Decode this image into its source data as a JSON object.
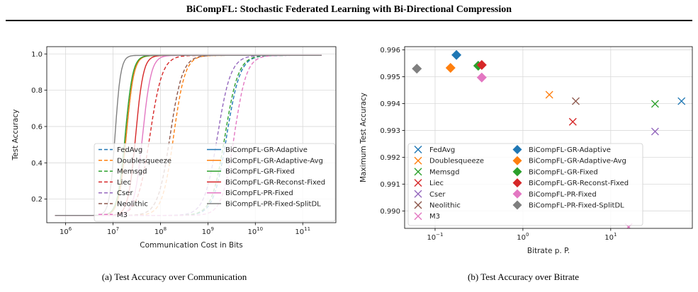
{
  "header": {
    "title": "BiCompFL: Stochastic Federated Learning with Bi-Directional Compression"
  },
  "captions": {
    "a": "(a) Test Accuracy over Communication",
    "b": "(b) Test Accuracy over Bitrate"
  },
  "chart_data": [
    {
      "id": "a",
      "type": "line",
      "xlabel": "Communication Cost in Bits",
      "ylabel": "Test Accuracy",
      "xscale": "log",
      "xlim": [
        400000,
        500000000000
      ],
      "ylim": [
        0.07,
        1.04
      ],
      "xticks": [
        {
          "v": 1000000,
          "label": "10^6"
        },
        {
          "v": 10000000,
          "label": "10^7"
        },
        {
          "v": 100000000,
          "label": "10^8"
        },
        {
          "v": 1000000000,
          "label": "10^9"
        },
        {
          "v": 10000000000,
          "label": "10^10"
        },
        {
          "v": 100000000000,
          "label": "10^11"
        }
      ],
      "yticks": [
        {
          "v": 0.2,
          "label": "0.2"
        },
        {
          "v": 0.4,
          "label": "0.4"
        },
        {
          "v": 0.6,
          "label": "0.6"
        },
        {
          "v": 0.8,
          "label": "0.8"
        },
        {
          "v": 1.0,
          "label": "1.0"
        }
      ],
      "grid": true,
      "legend": {
        "position": "lower-right",
        "columns": 2
      },
      "series": [
        {
          "name": "FedAvg",
          "color": "#1f77b4",
          "dash": true,
          "x0": 600000,
          "mid": 2500000000,
          "width": 0.14,
          "end": 250000000000
        },
        {
          "name": "Doublesqueeze",
          "color": "#ff7f0e",
          "dash": true,
          "x0": 600000,
          "mid": 190000000,
          "width": 0.12,
          "end": 250000000000
        },
        {
          "name": "Memsgd",
          "color": "#2ca02c",
          "dash": true,
          "x0": 600000,
          "mid": 2300000000,
          "width": 0.14,
          "end": 250000000000
        },
        {
          "name": "Liec",
          "color": "#d62728",
          "dash": true,
          "x0": 600000,
          "mid": 60000000,
          "width": 0.13,
          "end": 250000000000
        },
        {
          "name": "Cser",
          "color": "#9467bd",
          "dash": true,
          "x0": 600000,
          "mid": 1600000000,
          "width": 0.14,
          "end": 250000000000
        },
        {
          "name": "Neolithic",
          "color": "#8c564b",
          "dash": true,
          "x0": 600000,
          "mid": 160000000,
          "width": 0.13,
          "end": 250000000000
        },
        {
          "name": "M3",
          "color": "#e377c2",
          "dash": true,
          "x0": 600000,
          "mid": 3600000000,
          "width": 0.13,
          "end": 250000000000
        },
        {
          "name": "BiCompFL-GR-Adaptive",
          "color": "#1f77b4",
          "dash": false,
          "x0": 600000,
          "mid": 19000000,
          "width": 0.08,
          "end": 250000000000
        },
        {
          "name": "BiCompFL-GR-Adaptive-Avg",
          "color": "#ff7f0e",
          "dash": false,
          "x0": 600000,
          "mid": 19000000,
          "width": 0.08,
          "end": 250000000000
        },
        {
          "name": "BiCompFL-GR-Fixed",
          "color": "#2ca02c",
          "dash": false,
          "x0": 600000,
          "mid": 18000000,
          "width": 0.08,
          "end": 250000000000
        },
        {
          "name": "BiCompFL-GR-Reconst-Fixed",
          "color": "#d62728",
          "dash": false,
          "x0": 600000,
          "mid": 30000000,
          "width": 0.08,
          "end": 250000000000
        },
        {
          "name": "BiCompFL-PR-Fixed",
          "color": "#e377c2",
          "dash": false,
          "x0": 600000,
          "mid": 42000000,
          "width": 0.09,
          "end": 250000000000
        },
        {
          "name": "BiCompFL-PR-Fixed-SplitDL",
          "color": "#7f7f7f",
          "dash": false,
          "x0": 600000,
          "mid": 11000000,
          "width": 0.06,
          "end": 250000000000
        }
      ]
    },
    {
      "id": "b",
      "type": "scatter",
      "xlabel": "Bitrate p. P.",
      "ylabel": "Maximum Test Accuracy",
      "xscale": "log",
      "xlim": [
        0.045,
        85
      ],
      "ylim": [
        0.98935,
        0.99612
      ],
      "xticks": [
        {
          "v": 0.1,
          "label": "10^-1"
        },
        {
          "v": 1,
          "label": "10^0"
        },
        {
          "v": 10,
          "label": "10^1"
        }
      ],
      "yticks": [
        {
          "v": 0.99,
          "label": "0.990"
        },
        {
          "v": 0.991,
          "label": "0.991"
        },
        {
          "v": 0.992,
          "label": "0.992"
        },
        {
          "v": 0.993,
          "label": "0.993"
        },
        {
          "v": 0.994,
          "label": "0.994"
        },
        {
          "v": 0.995,
          "label": "0.995"
        },
        {
          "v": 0.996,
          "label": "0.996"
        }
      ],
      "grid": true,
      "legend": {
        "position": "lower-left",
        "columns": 2
      },
      "series": [
        {
          "name": "FedAvg",
          "color": "#1f77b4",
          "marker": "x",
          "x": 64,
          "y": 0.99409
        },
        {
          "name": "Doublesqueeze",
          "color": "#ff7f0e",
          "marker": "x",
          "x": 2.0,
          "y": 0.99433
        },
        {
          "name": "Memsgd",
          "color": "#2ca02c",
          "marker": "x",
          "x": 32,
          "y": 0.99399
        },
        {
          "name": "Liec",
          "color": "#d62728",
          "marker": "x",
          "x": 3.7,
          "y": 0.99332
        },
        {
          "name": "Cser",
          "color": "#9467bd",
          "marker": "x",
          "x": 32,
          "y": 0.99296
        },
        {
          "name": "Neolithic",
          "color": "#8c564b",
          "marker": "x",
          "x": 4.0,
          "y": 0.99409
        },
        {
          "name": "M3",
          "color": "#e377c2",
          "marker": "x",
          "x": 16,
          "y": 0.9894
        },
        {
          "name": "BiCompFL-GR-Adaptive",
          "color": "#1f77b4",
          "marker": "D",
          "x": 0.175,
          "y": 0.99581
        },
        {
          "name": "BiCompFL-GR-Adaptive-Avg",
          "color": "#ff7f0e",
          "marker": "D",
          "x": 0.15,
          "y": 0.99533
        },
        {
          "name": "BiCompFL-GR-Fixed",
          "color": "#2ca02c",
          "marker": "D",
          "x": 0.31,
          "y": 0.99541
        },
        {
          "name": "BiCompFL-GR-Reconst-Fixed",
          "color": "#d62728",
          "marker": "D",
          "x": 0.34,
          "y": 0.99544
        },
        {
          "name": "BiCompFL-PR-Fixed",
          "color": "#e377c2",
          "marker": "D",
          "x": 0.34,
          "y": 0.99497
        },
        {
          "name": "BiCompFL-PR-Fixed-SplitDL",
          "color": "#7f7f7f",
          "marker": "D",
          "x": 0.062,
          "y": 0.9953
        }
      ]
    }
  ]
}
